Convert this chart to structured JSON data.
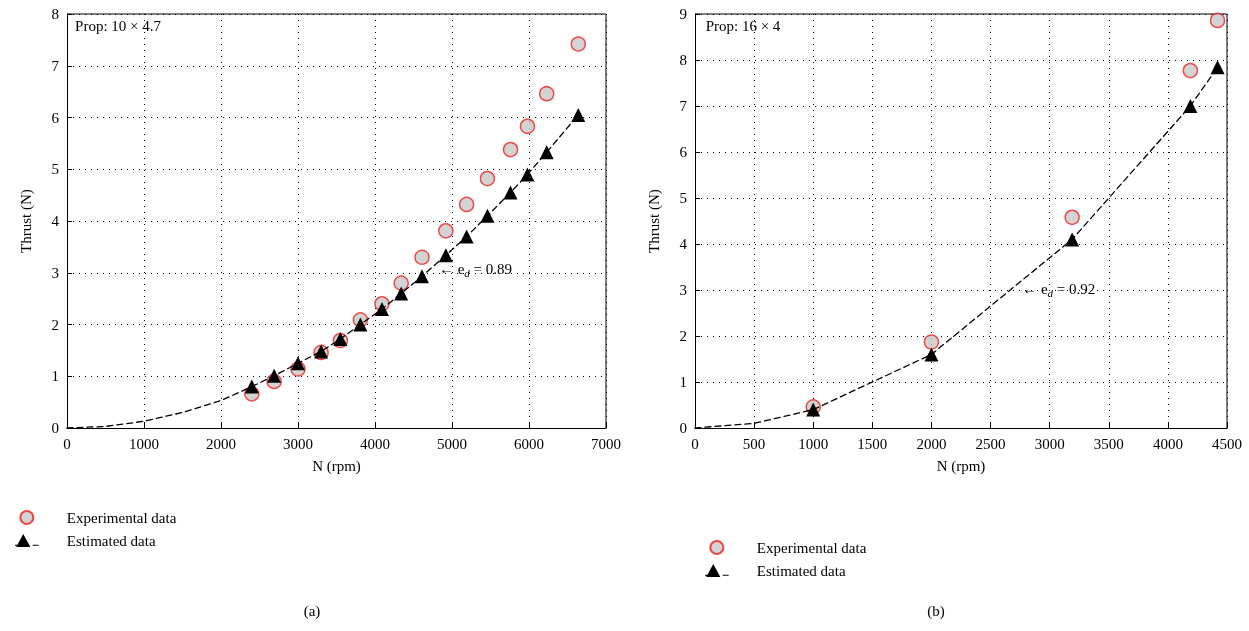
{
  "chart_data": [
    {
      "type": "scatter",
      "title": "(a)",
      "xlabel": "N (rpm)",
      "ylabel": "Thrust (N)",
      "xlim": [
        0,
        7000
      ],
      "xticks": [
        0,
        1000,
        2000,
        3000,
        4000,
        5000,
        6000,
        7000
      ],
      "ylim": [
        0,
        8
      ],
      "yticks": [
        0,
        1,
        2,
        3,
        4,
        5,
        6,
        7,
        8
      ],
      "grid": true,
      "legend": "bottom left",
      "annotations": [
        "Prop: 10 × 4.7",
        "← e$_{d}$ = 0.89"
      ],
      "series": [
        {
          "name": "Experimental data",
          "marker": "circle",
          "color": "#c8c8c8",
          "x": [
            2400,
            2690,
            3000,
            3300,
            3550,
            3810,
            4090,
            4340,
            4610,
            4920,
            5190,
            5460,
            5760,
            5980,
            6230,
            6640
          ],
          "values": [
            0.66,
            0.9,
            1.14,
            1.46,
            1.69,
            2.09,
            2.4,
            2.8,
            3.3,
            3.81,
            4.32,
            4.82,
            5.38,
            5.83,
            6.46,
            7.42
          ]
        },
        {
          "name": "Estimated data",
          "type": "line",
          "marker": "triangle",
          "line_style": "dashed",
          "color": "#000000",
          "x": [
            2400,
            2690,
            3000,
            3300,
            3550,
            3810,
            4090,
            4340,
            4610,
            4920,
            5190,
            5460,
            5760,
            5980,
            6230,
            6640
          ],
          "values": [
            0.8,
            1.01,
            1.25,
            1.48,
            1.72,
            2.0,
            2.3,
            2.6,
            2.93,
            3.34,
            3.7,
            4.1,
            4.55,
            4.9,
            5.33,
            6.05
          ]
        },
        {
          "type": "line",
          "marker": "none",
          "line_style": "dashed",
          "color": "#000000",
          "x": [
            0,
            500,
            1000,
            1500,
            2000,
            2400
          ],
          "values": [
            0,
            0.03,
            0.13,
            0.3,
            0.53,
            0.8
          ]
        }
      ]
    },
    {
      "type": "scatter",
      "title": "(b)",
      "xlabel": "N (rpm)",
      "ylabel": "Thrust (N)",
      "xlim": [
        0,
        4500
      ],
      "xticks": [
        0,
        500,
        1000,
        1500,
        2000,
        2500,
        3000,
        3500,
        4000,
        4500
      ],
      "ylim": [
        0,
        9
      ],
      "yticks": [
        0,
        1,
        2,
        3,
        4,
        5,
        6,
        7,
        8,
        9
      ],
      "grid": true,
      "legend": "bottom left",
      "annotations": [
        "Prop: 16 × 4",
        "← e$_{d}$ = 0.92"
      ],
      "series": [
        {
          "name": "Experimental data",
          "marker": "circle",
          "color": "#c8c8c8",
          "x": [
            1000,
            2000,
            3190,
            4190,
            4420
          ],
          "values": [
            0.46,
            1.87,
            4.58,
            7.77,
            8.86
          ]
        },
        {
          "name": "Estimated data",
          "type": "line",
          "marker": "triangle",
          "line_style": "dashed",
          "color": "#000000",
          "x": [
            1000,
            2000,
            3190,
            4190,
            4420
          ],
          "values": [
            0.4,
            1.6,
            4.1,
            7.0,
            7.84
          ]
        },
        {
          "type": "line",
          "marker": "none",
          "line_style": "dashed",
          "color": "#000000",
          "x": [
            0,
            500,
            1000
          ],
          "values": [
            0,
            0.1,
            0.4
          ]
        }
      ]
    }
  ]
}
